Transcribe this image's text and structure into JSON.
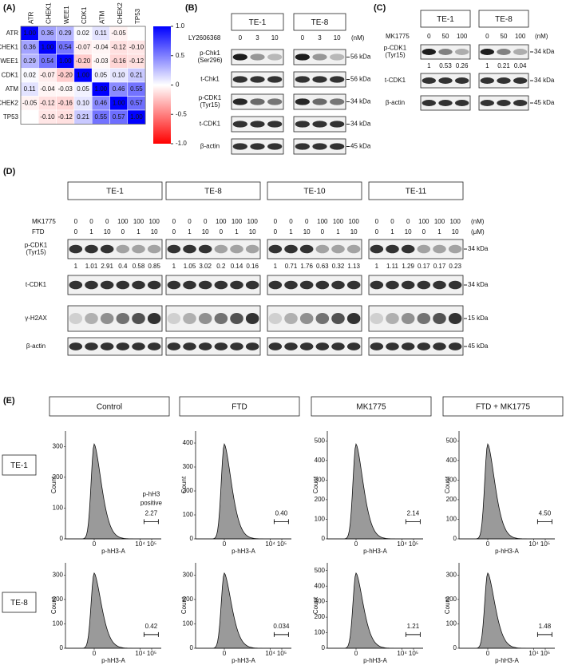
{
  "panel_a": {
    "label": "(A)",
    "genes": [
      "ATR",
      "CHEK1",
      "WEE1",
      "CDK1",
      "ATM",
      "CHEK2",
      "TP53"
    ],
    "values": [
      [
        1,
        0.36,
        0.29,
        0.02,
        0.11,
        -0.05,
        null
      ],
      [
        0.36,
        1,
        0.54,
        -0.07,
        -0.04,
        -0.12,
        -0.1
      ],
      [
        0.29,
        0.54,
        1,
        -0.2,
        -0.03,
        -0.16,
        -0.12
      ],
      [
        0.02,
        -0.07,
        -0.2,
        1,
        0.05,
        0.1,
        0.21
      ],
      [
        0.11,
        -0.04,
        -0.03,
        0.05,
        1,
        0.46,
        0.55
      ],
      [
        -0.05,
        -0.12,
        -0.16,
        0.1,
        0.46,
        1,
        0.57
      ],
      [
        null,
        -0.1,
        -0.12,
        0.21,
        0.55,
        0.57,
        1
      ]
    ],
    "value_labels": [
      [
        "1.00",
        "0.36",
        "0.29",
        "0.02",
        "0.11",
        "-0.05",
        null
      ],
      [
        "0.36",
        "1.00",
        "0.54",
        "-0.07",
        "-0.04",
        "-0.12",
        "-0.10"
      ],
      [
        "0.29",
        "0.54",
        "1.00",
        "-0.20",
        "-0.03",
        "-0.16",
        "-0.12"
      ],
      [
        "0.02",
        "-0.07",
        "-0.20",
        "1.00",
        "0.05",
        "0.10",
        "0.21"
      ],
      [
        "0.11",
        "-0.04",
        "-0.03",
        "0.05",
        "1.00",
        "0.46",
        "0.55"
      ],
      [
        "-0.05",
        "-0.12",
        "-0.16",
        "0.10",
        "0.46",
        "1.00",
        "0.57"
      ],
      [
        null,
        "-0.10",
        "-0.12",
        "0.21",
        "0.55",
        "0.57",
        "1.00"
      ]
    ],
    "colorscale": {
      "low": "#ff0000",
      "mid": "#ffffff",
      "high": "#0000ff"
    },
    "colorbar_lim": [
      -1,
      1
    ],
    "colorbar_ticks": [
      {
        "value": 1,
        "label": "1.0"
      },
      {
        "value": 0.5,
        "label": "0.5"
      },
      0,
      {
        "value": -0.5,
        "label": "-0.5"
      },
      {
        "value": -1,
        "label": "-1.0"
      }
    ]
  },
  "panel_b": {
    "label": "(B)",
    "cell_lines": [
      "TE-1",
      "TE-8"
    ],
    "treatment": "LY2606368",
    "doses": [
      0,
      3,
      10
    ],
    "dose_unit": "(nM)",
    "blots": [
      {
        "name": [
          "p-Chk1",
          "(Ser296)"
        ],
        "size": "56 kDa"
      },
      {
        "name": [
          "t-Chk1"
        ],
        "size": "56 kDa"
      },
      {
        "name": [
          "p-CDK1",
          "(Tyr15)"
        ],
        "size": "34 kDa"
      },
      {
        "name": [
          "t-CDK1"
        ],
        "size": "34 kDa"
      },
      {
        "name": [
          "β-actin"
        ],
        "size": "45 kDa"
      }
    ]
  },
  "panel_c": {
    "label": "(C)",
    "cell_lines": [
      "TE-1",
      "TE-8"
    ],
    "treatment": "MK1775",
    "doses": [
      0,
      50,
      100
    ],
    "dose_unit": "(nM)",
    "blots": [
      {
        "name": [
          "p-CDK1",
          "(Tyr15)"
        ],
        "size": "34 kDa",
        "quantification": [
          [
            1,
            0.53,
            0.26
          ],
          [
            1,
            0.21,
            0.04
          ]
        ]
      },
      {
        "name": [
          "t-CDK1"
        ],
        "size": "34 kDa"
      },
      {
        "name": [
          "β-actin"
        ],
        "size": "45 kDa"
      }
    ]
  },
  "panel_d": {
    "label": "(D)",
    "cell_lines": [
      "TE-1",
      "TE-8",
      "TE-10",
      "TE-11"
    ],
    "treatments": [
      {
        "name": "MK1775",
        "doses": [
          0,
          0,
          0,
          100,
          100,
          100
        ],
        "unit": "(nM)"
      },
      {
        "name": "FTD",
        "doses": [
          0,
          1,
          10,
          0,
          1,
          10
        ],
        "unit": "(μM)"
      }
    ],
    "blots": [
      {
        "name": [
          "p-CDK1",
          "(Tyr15)"
        ],
        "size": "34 kDa",
        "quantification": [
          [
            1,
            1.01,
            2.91,
            0.4,
            0.58,
            0.85
          ],
          [
            1,
            1.05,
            3.02,
            0.2,
            0.14,
            0.16
          ],
          [
            1,
            0.71,
            1.76,
            0.63,
            0.32,
            1.13
          ],
          [
            1,
            1.11,
            1.29,
            0.17,
            0.17,
            0.23
          ]
        ]
      },
      {
        "name": [
          "t-CDK1"
        ],
        "size": "34 kDa"
      },
      {
        "name": [
          "γ-H2AX"
        ],
        "size": "15 kDa"
      },
      {
        "name": [
          "β-actin"
        ],
        "size": "45 kDa"
      }
    ]
  },
  "panel_e": {
    "label": "(E)",
    "conditions": [
      "Control",
      "FTD",
      "MK1775",
      "FTD + MK1775"
    ],
    "cell_lines": [
      "TE-1",
      "TE-8"
    ],
    "x_label": "p-hH3-A",
    "y_label": "Count",
    "gate_label": [
      "p-hH3",
      "positive"
    ],
    "xticks": [
      0,
      {
        "value": 10000,
        "label": "10⁴"
      },
      {
        "value": 100000,
        "label": "10⁵"
      }
    ],
    "plots": [
      [
        {
          "ylim": [
            0,
            350
          ],
          "yticks": [
            0,
            100,
            200,
            300
          ],
          "positive": "2.27"
        },
        {
          "ylim": [
            0,
            450
          ],
          "yticks": [
            0,
            100,
            200,
            300,
            400
          ],
          "positive": "0.40"
        },
        {
          "ylim": [
            0,
            550
          ],
          "yticks": [
            0,
            100,
            200,
            300,
            400,
            500
          ],
          "positive": "2.14"
        },
        {
          "ylim": [
            0,
            550
          ],
          "yticks": [
            0,
            100,
            200,
            300,
            400,
            500
          ],
          "positive": "4.50"
        }
      ],
      [
        {
          "ylim": [
            0,
            350
          ],
          "yticks": [
            0,
            100,
            200,
            300
          ],
          "positive": "0.42"
        },
        {
          "ylim": [
            0,
            350
          ],
          "yticks": [
            0,
            100,
            200,
            300
          ],
          "positive": "0.034"
        },
        {
          "ylim": [
            0,
            550
          ],
          "yticks": [
            0,
            100,
            200,
            300,
            400,
            500
          ],
          "positive": "1.21"
        },
        {
          "ylim": [
            0,
            350
          ],
          "yticks": [
            0,
            100,
            200,
            300
          ],
          "positive": "1.48"
        }
      ]
    ]
  }
}
